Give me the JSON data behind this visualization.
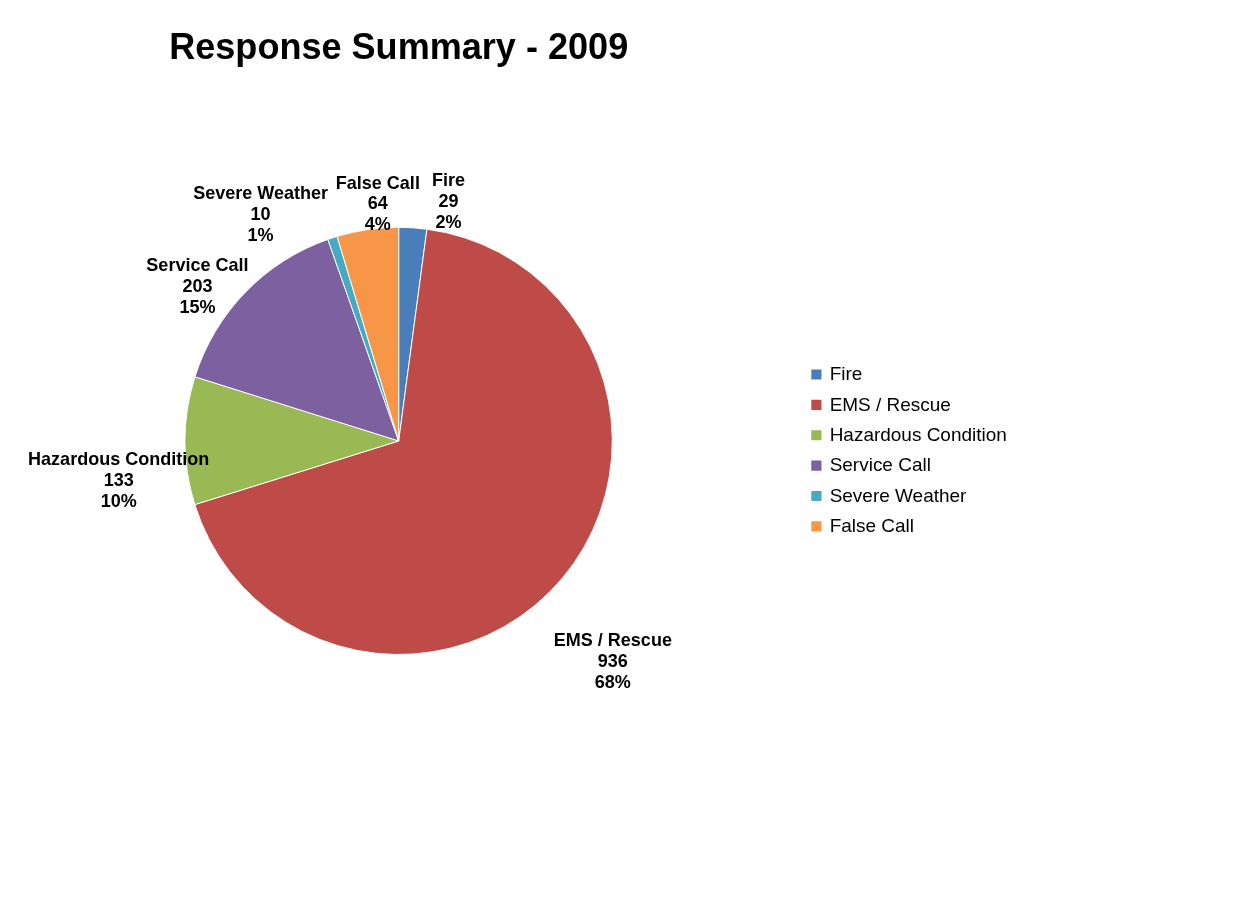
{
  "chart_data": {
    "type": "pie",
    "title": "Response Summary - 2009",
    "categories": [
      "Fire",
      "EMS / Rescue",
      "Hazardous Condition",
      "Service Call",
      "Severe Weather",
      "False Call"
    ],
    "values": [
      29,
      936,
      133,
      203,
      10,
      64
    ],
    "value_labels": [
      "29\n2%",
      "936\n68%",
      "133\n10%",
      "203\n15%",
      "10\n1%",
      "64\n4%"
    ],
    "colors": [
      "#4a7ebb",
      "#be4b48",
      "#98b954",
      "#7d60a0",
      "#46aac5",
      "#f79646"
    ],
    "legend": "right"
  }
}
